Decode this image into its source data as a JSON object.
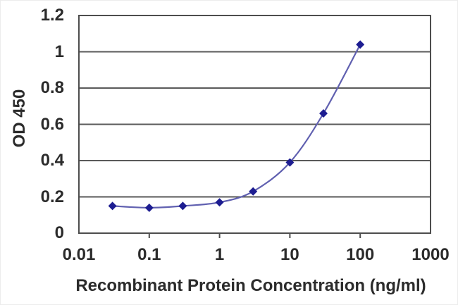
{
  "chart_data": {
    "type": "line",
    "xlabel": "Recombinant Protein Concentration (ng/ml)",
    "ylabel": "OD 450",
    "x_scale": "log",
    "xlim": [
      0.01,
      1000
    ],
    "ylim": [
      0,
      1.2
    ],
    "x_tick_values": [
      0.01,
      0.1,
      1,
      10,
      100,
      1000
    ],
    "x_tick_labels": [
      "0.01",
      "0.1",
      "1",
      "10",
      "100",
      "1000"
    ],
    "y_tick_values": [
      0,
      0.2,
      0.4,
      0.6,
      0.8,
      1,
      1.2
    ],
    "y_tick_labels": [
      "0",
      "0.2",
      "0.4",
      "0.6",
      "0.8",
      "1",
      "1.2"
    ],
    "grid": "horizontal",
    "legend": "none",
    "series": [
      {
        "x": [
          0.03,
          0.1,
          0.3,
          1,
          3,
          10,
          30,
          100
        ],
        "y": [
          0.15,
          0.14,
          0.15,
          0.17,
          0.23,
          0.39,
          0.66,
          1.04
        ],
        "marker": "diamond",
        "line_color": "#6060b0",
        "marker_color": "#1d1d91"
      }
    ],
    "colors": {
      "axis": "#4d4d4d",
      "grid": "#5a5a5a",
      "text": "#2b2b2b",
      "background": "#ffffff"
    }
  }
}
